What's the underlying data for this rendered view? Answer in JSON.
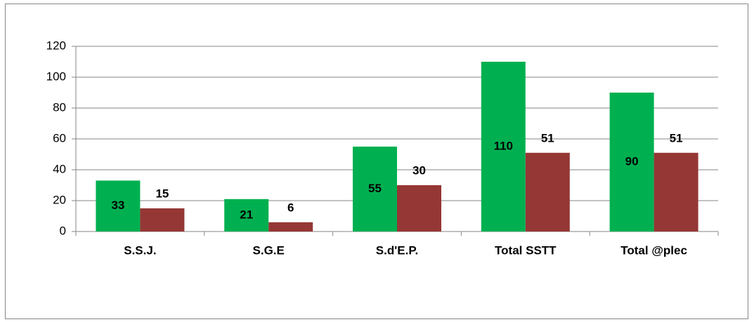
{
  "chart_data": {
    "type": "bar",
    "categories": [
      "S.S.J.",
      "S.G.E",
      "S.d'E.P.",
      "Total SSTT",
      "Total @plec"
    ],
    "series": [
      {
        "color": "#00b050",
        "values": [
          33,
          21,
          55,
          110,
          90
        ]
      },
      {
        "color": "#953735",
        "values": [
          15,
          6,
          30,
          51,
          51
        ]
      }
    ],
    "ylim": [
      0,
      120
    ],
    "yticks": [
      0,
      20,
      40,
      60,
      80,
      100,
      120
    ],
    "grid": true
  }
}
